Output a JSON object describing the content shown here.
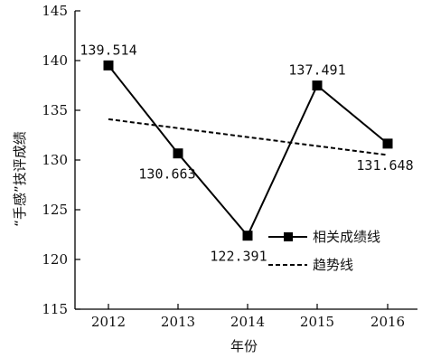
{
  "chart_data": {
    "type": "line",
    "title": "",
    "xlabel": "年份",
    "ylabel": "“手感”技评成绩",
    "categories": [
      "2012",
      "2013",
      "2014",
      "2015",
      "2016"
    ],
    "ylim": [
      115,
      145
    ],
    "yticks": [
      "115",
      "120",
      "125",
      "130",
      "135",
      "140",
      "145"
    ],
    "series": [
      {
        "name": "相关成绩线",
        "values": [
          139.514,
          130.663,
          122.391,
          137.491,
          131.648
        ],
        "data_labels": [
          "139.514",
          "130.663",
          "122.391",
          "137.491",
          "131.648"
        ],
        "style": "solid",
        "marker": "square",
        "color": "#000000"
      },
      {
        "name": "趋势线",
        "values": [
          134.1,
          133.2,
          132.3,
          131.4,
          130.5
        ],
        "style": "dashed",
        "color": "#000000"
      }
    ],
    "legend_position": "lower-right",
    "grid": false
  }
}
